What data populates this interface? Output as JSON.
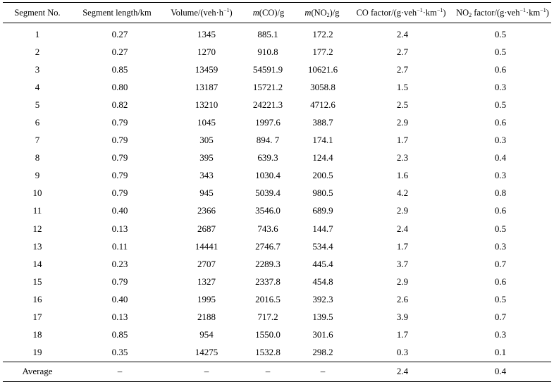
{
  "headers": {
    "segment": "Segment No.",
    "length": "Segment length/km",
    "volume_prefix": "Volume/(veh·h",
    "volume_sup": "−1",
    "volume_suffix": ")",
    "co_m": "m",
    "co_paren": "(CO)/g",
    "no2_m": "m",
    "no2_open": "(NO",
    "no2_sub": "2",
    "no2_close": ")/g",
    "cof_prefix": "CO factor/(g·veh",
    "cof_sup1": "−1",
    "cof_mid": "·km",
    "cof_sup2": "−1",
    "cof_suffix": ")",
    "no2f_prefix": "NO",
    "no2f_sub": "2",
    "no2f_mid1": " factor/(g·veh",
    "no2f_sup1": "−1",
    "no2f_mid2": "·km",
    "no2f_sup2": "−1",
    "no2f_suffix": ")"
  },
  "rows": [
    {
      "seg": "1",
      "len": "0.27",
      "vol": "1345",
      "co": "885.1",
      "no2": "172.2",
      "cof": "2.4",
      "no2f": "0.5"
    },
    {
      "seg": "2",
      "len": "0.27",
      "vol": "1270",
      "co": "910.8",
      "no2": "177.2",
      "cof": "2.7",
      "no2f": "0.5"
    },
    {
      "seg": "3",
      "len": "0.85",
      "vol": "13459",
      "co": "54591.9",
      "no2": "10621.6",
      "cof": "2.7",
      "no2f": "0.6"
    },
    {
      "seg": "4",
      "len": "0.80",
      "vol": "13187",
      "co": "15721.2",
      "no2": "3058.8",
      "cof": "1.5",
      "no2f": "0.3"
    },
    {
      "seg": "5",
      "len": "0.82",
      "vol": "13210",
      "co": "24221.3",
      "no2": "4712.6",
      "cof": "2.5",
      "no2f": "0.5"
    },
    {
      "seg": "6",
      "len": "0.79",
      "vol": "1045",
      "co": "1997.6",
      "no2": "388.7",
      "cof": "2.9",
      "no2f": "0.6"
    },
    {
      "seg": "7",
      "len": "0.79",
      "vol": "305",
      "co": "894. 7",
      "no2": "174.1",
      "cof": "1.7",
      "no2f": "0.3"
    },
    {
      "seg": "8",
      "len": "0.79",
      "vol": "395",
      "co": "639.3",
      "no2": "124.4",
      "cof": "2.3",
      "no2f": "0.4"
    },
    {
      "seg": "9",
      "len": "0.79",
      "vol": "343",
      "co": "1030.4",
      "no2": "200.5",
      "cof": "1.6",
      "no2f": "0.3"
    },
    {
      "seg": "10",
      "len": "0.79",
      "vol": "945",
      "co": "5039.4",
      "no2": "980.5",
      "cof": "4.2",
      "no2f": "0.8"
    },
    {
      "seg": "11",
      "len": "0.40",
      "vol": "2366",
      "co": "3546.0",
      "no2": "689.9",
      "cof": "2.9",
      "no2f": "0.6"
    },
    {
      "seg": "12",
      "len": "0.13",
      "vol": "2687",
      "co": "743.6",
      "no2": "144.7",
      "cof": "2.4",
      "no2f": "0.5"
    },
    {
      "seg": "13",
      "len": "0.11",
      "vol": "14441",
      "co": "2746.7",
      "no2": "534.4",
      "cof": "1.7",
      "no2f": "0.3"
    },
    {
      "seg": "14",
      "len": "0.23",
      "vol": "2707",
      "co": "2289.3",
      "no2": "445.4",
      "cof": "3.7",
      "no2f": "0.7"
    },
    {
      "seg": "15",
      "len": "0.79",
      "vol": "1327",
      "co": "2337.8",
      "no2": "454.8",
      "cof": "2.9",
      "no2f": "0.6"
    },
    {
      "seg": "16",
      "len": "0.40",
      "vol": "1995",
      "co": "2016.5",
      "no2": "392.3",
      "cof": "2.6",
      "no2f": "0.5"
    },
    {
      "seg": "17",
      "len": "0.13",
      "vol": "2188",
      "co": "717.2",
      "no2": "139.5",
      "cof": "3.9",
      "no2f": "0.7"
    },
    {
      "seg": "18",
      "len": "0.85",
      "vol": "954",
      "co": "1550.0",
      "no2": "301.6",
      "cof": "1.7",
      "no2f": "0.3"
    },
    {
      "seg": "19",
      "len": "0.35",
      "vol": "14275",
      "co": "1532.8",
      "no2": "298.2",
      "cof": "0.3",
      "no2f": "0.1"
    }
  ],
  "average": {
    "seg": "Average",
    "len": "–",
    "vol": "–",
    "co": "–",
    "no2": "–",
    "cof": "2.4",
    "no2f": "0.4"
  }
}
